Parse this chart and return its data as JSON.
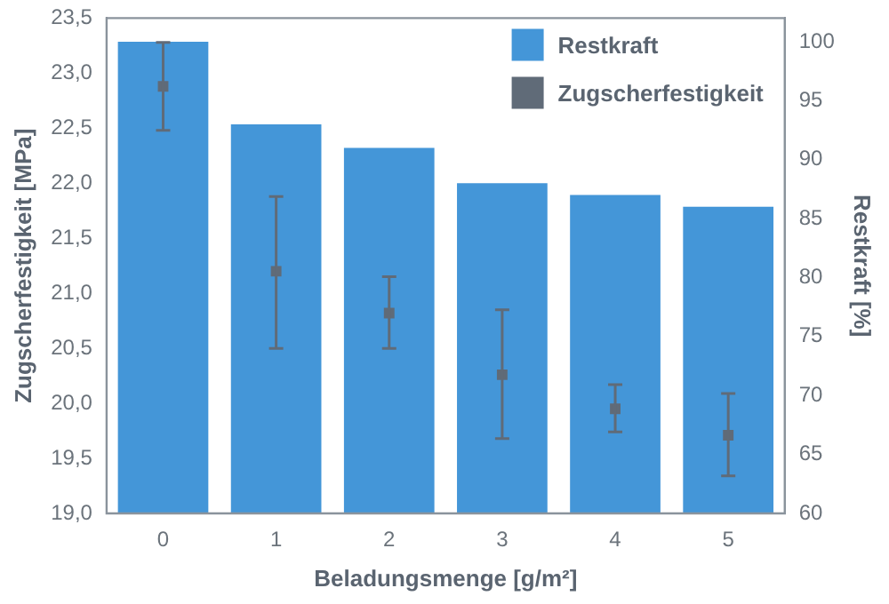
{
  "chart_data": {
    "type": "bar",
    "xlabel": "Beladungsmenge [g/m²]",
    "ylabel": "Zugscherfestigkeit [MPa]",
    "y2label": "Restkraft [%]",
    "categories": [
      "0",
      "1",
      "2",
      "3",
      "4",
      "5"
    ],
    "series": [
      {
        "name": "Restkraft",
        "axis": "y2",
        "color": "#4496d8",
        "values": [
          100,
          93,
          91,
          88,
          87,
          86
        ]
      },
      {
        "name": "Zugscherfestigkeit",
        "type": "scatter",
        "x": [
          "0",
          "1",
          "2",
          "3",
          "4",
          "5"
        ],
        "color": "#606b78",
        "marker": "square",
        "values": [
          22.88,
          21.2,
          20.82,
          20.26,
          19.95,
          19.71
        ],
        "errors": [
          [
            22.48,
            23.28
          ],
          [
            20.5,
            21.88
          ],
          [
            20.5,
            21.15
          ],
          [
            19.68,
            20.85
          ],
          [
            19.74,
            20.17
          ],
          [
            19.34,
            20.09
          ]
        ]
      }
    ],
    "ylim": [
      19,
      23.5
    ],
    "yticks": [
      {
        "value": 19,
        "label": "19,0"
      },
      {
        "value": 19.5,
        "label": "19,5"
      },
      {
        "value": 20,
        "label": "20,0"
      },
      {
        "value": 20.5,
        "label": "20,5"
      },
      {
        "value": 21,
        "label": "21,0"
      },
      {
        "value": 21.5,
        "label": "21,5"
      },
      {
        "value": 22,
        "label": "22,0"
      },
      {
        "value": 22.5,
        "label": "22,5"
      },
      {
        "value": 23,
        "label": "23,0"
      },
      {
        "value": 23.5,
        "label": "23,5"
      }
    ],
    "y2lim": [
      60,
      102
    ],
    "y2ticks": [
      60,
      65,
      70,
      75,
      80,
      85,
      90,
      95,
      100
    ],
    "grid": false,
    "legend": "top right"
  }
}
